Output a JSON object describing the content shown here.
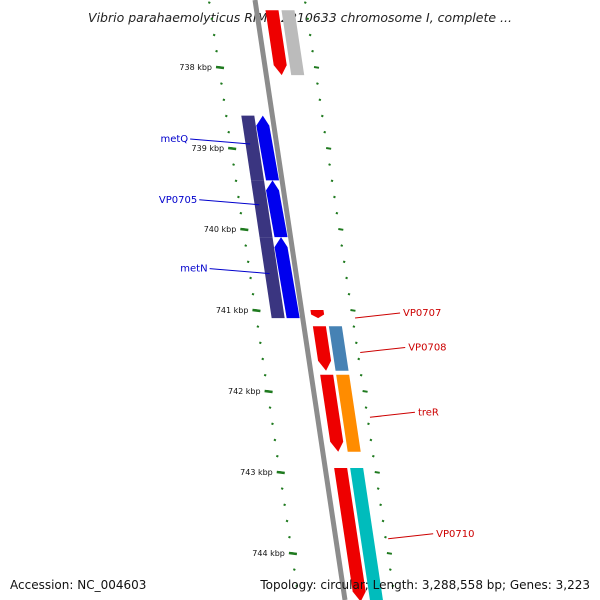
{
  "title": "Vibrio parahaemolyticus RIMD 2210633 chromosome I, complete ...",
  "footer": {
    "accession": "Accession: NC_004603",
    "summary": "Topology: circular; Length: 3,288,558 bp; Genes: 3,223"
  },
  "ticks": [
    {
      "kbp": 738,
      "label": "738 kbp"
    },
    {
      "kbp": 739,
      "label": "739 kbp"
    },
    {
      "kbp": 740,
      "label": "740 kbp"
    },
    {
      "kbp": 741,
      "label": "741 kbp"
    },
    {
      "kbp": 742,
      "label": "742 kbp"
    },
    {
      "kbp": 743,
      "label": "743 kbp"
    },
    {
      "kbp": 744,
      "label": "744 kbp"
    }
  ],
  "colors": {
    "backbone": "#8c8c8c",
    "tick": "#1f7a1f",
    "label_left": "#0000cc",
    "label_right": "#cc0000"
  },
  "genes": [
    {
      "name": "",
      "strand": "+",
      "start_kbp": 737.3,
      "end_kbp": 738.1,
      "cds_color": "#ee0000",
      "gene_color": "#bbbbbb"
    },
    {
      "name": "metQ",
      "strand": "-",
      "start_kbp": 738.6,
      "end_kbp": 739.4,
      "cds_color": "#0000ee",
      "gene_color": "#3a3580",
      "label_side": "left"
    },
    {
      "name": "VP0705",
      "strand": "-",
      "start_kbp": 739.4,
      "end_kbp": 740.1,
      "cds_color": "#0000ee",
      "gene_color": "#3a3580",
      "label_side": "left"
    },
    {
      "name": "metN",
      "strand": "-",
      "start_kbp": 740.1,
      "end_kbp": 741.1,
      "cds_color": "#0000ee",
      "gene_color": "#3a3580",
      "label_side": "left"
    },
    {
      "name": "VP0707",
      "strand": "+",
      "start_kbp": 741.0,
      "end_kbp": 741.1,
      "cds_color": "#ee0000",
      "gene_color": "",
      "label_side": "right"
    },
    {
      "name": "VP0708",
      "strand": "+",
      "start_kbp": 741.2,
      "end_kbp": 741.75,
      "cds_color": "#ee0000",
      "gene_color": "#4682b4",
      "label_side": "right"
    },
    {
      "name": "treR",
      "strand": "+",
      "start_kbp": 741.8,
      "end_kbp": 742.75,
      "cds_color": "#ee0000",
      "gene_color": "#ff8c00",
      "label_side": "right"
    },
    {
      "name": "VP0710",
      "strand": "+",
      "start_kbp": 742.95,
      "end_kbp": 744.6,
      "cds_color": "#ee0000",
      "gene_color": "#00bcbc",
      "label_side": "right"
    }
  ]
}
